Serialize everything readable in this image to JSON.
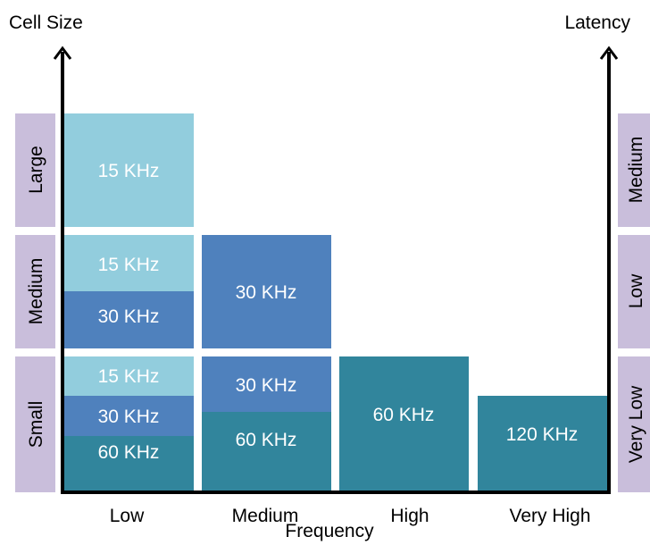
{
  "axes": {
    "left_title": "Cell Size",
    "right_title": "Latency",
    "bottom_title": "Frequency"
  },
  "left_categories": [
    "Large",
    "Medium",
    "Small"
  ],
  "right_categories": [
    "Medium",
    "Low",
    "Very Low"
  ],
  "frequency_columns": [
    "Low",
    "Medium",
    "High",
    "Very High"
  ],
  "blocks": {
    "low_large_15": "15 KHz",
    "low_medium_15": "15 KHz",
    "low_medium_30": "30 KHz",
    "low_small_15": "15 KHz",
    "low_small_30": "30 KHz",
    "low_small_60": "60 KHz",
    "medium_medium_30": "30 KHz",
    "medium_small_30": "30 KHz",
    "medium_small_60": "60 KHz",
    "high_small_60": "60 KHz",
    "veryhigh_small_120": "120 KHz"
  },
  "colors": {
    "label_box": "#c9bedb",
    "scs_15": "#92cddd",
    "scs_30": "#4f81bd",
    "scs_60": "#31859c",
    "axis": "#000000",
    "text_dark": "#000000",
    "text_light": "#ffffff"
  }
}
